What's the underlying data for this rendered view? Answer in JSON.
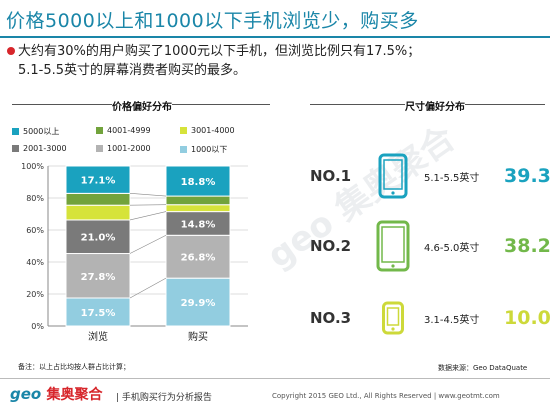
{
  "page": {
    "title": "价格5000以上和1000以下手机浏览少，购买多",
    "summary_line1": "大约有30%的用户购买了1000元以下手机，但浏览比例只有17.5%；",
    "summary_line2": "5.1-5.5英寸的屏幕消费者购买的最多。",
    "price_panel_title": "价格偏好分布",
    "size_panel_title": "尺寸偏好分布",
    "note": "备注：以上占比均按人群占比计算；",
    "source": "数据来源：Geo DataQuate",
    "logo_latin": "geo",
    "logo_cn": "集奥聚合",
    "footer_report": "| 手机购买行为分析报告",
    "copyright": "Copyright 2015 GEO Ltd., All Rights Reserved  |  www.geotmt.com",
    "watermark": "geo 集奥聚合"
  },
  "chart_data": [
    {
      "type": "bar",
      "stacked": true,
      "title": "价格偏好分布",
      "categories": [
        "浏览",
        "购买"
      ],
      "ylim": [
        0,
        100
      ],
      "ytick_labels": [
        "0%",
        "20%",
        "40%",
        "60%",
        "80%",
        "100%"
      ],
      "grid": true,
      "legend_position": "top",
      "series": [
        {
          "name": "1000以下",
          "color": "#92cde0",
          "values": [
            17.5,
            29.9
          ],
          "labels": [
            "17.5%",
            "29.9%"
          ]
        },
        {
          "name": "1001-2000",
          "color": "#b3b3b3",
          "values": [
            27.8,
            26.8
          ],
          "labels": [
            "27.8%",
            "26.8%"
          ]
        },
        {
          "name": "2001-3000",
          "color": "#7a7a7a",
          "values": [
            21.0,
            14.8
          ],
          "labels": [
            "21.0%",
            "14.8%"
          ]
        },
        {
          "name": "3001-4000",
          "color": "#d6e33a",
          "values": [
            9.2,
            4.3
          ],
          "labels": [
            "",
            ""
          ]
        },
        {
          "name": "4001-4999",
          "color": "#72a33c",
          "values": [
            7.4,
            5.4
          ],
          "labels": [
            "",
            ""
          ]
        },
        {
          "name": "5000以上",
          "color": "#1aa2bf",
          "values": [
            17.1,
            18.8
          ],
          "labels": [
            "17.1%",
            "18.8%"
          ]
        }
      ]
    },
    {
      "type": "table",
      "title": "尺寸偏好分布",
      "rows": [
        {
          "rank": "NO.1",
          "range": "5.1-5.5英寸",
          "value": 39.3,
          "label": "39.3%",
          "color": "#1aa2bf",
          "icon": "phone-icon"
        },
        {
          "rank": "NO.2",
          "range": "4.6-5.0英寸",
          "value": 38.2,
          "label": "38.2%",
          "color": "#72b84a",
          "icon": "phone-icon"
        },
        {
          "rank": "NO.3",
          "range": "3.1-4.5英寸",
          "value": 10.0,
          "label": "10.0%",
          "color": "#cdd93a",
          "icon": "phone-icon"
        }
      ]
    }
  ]
}
